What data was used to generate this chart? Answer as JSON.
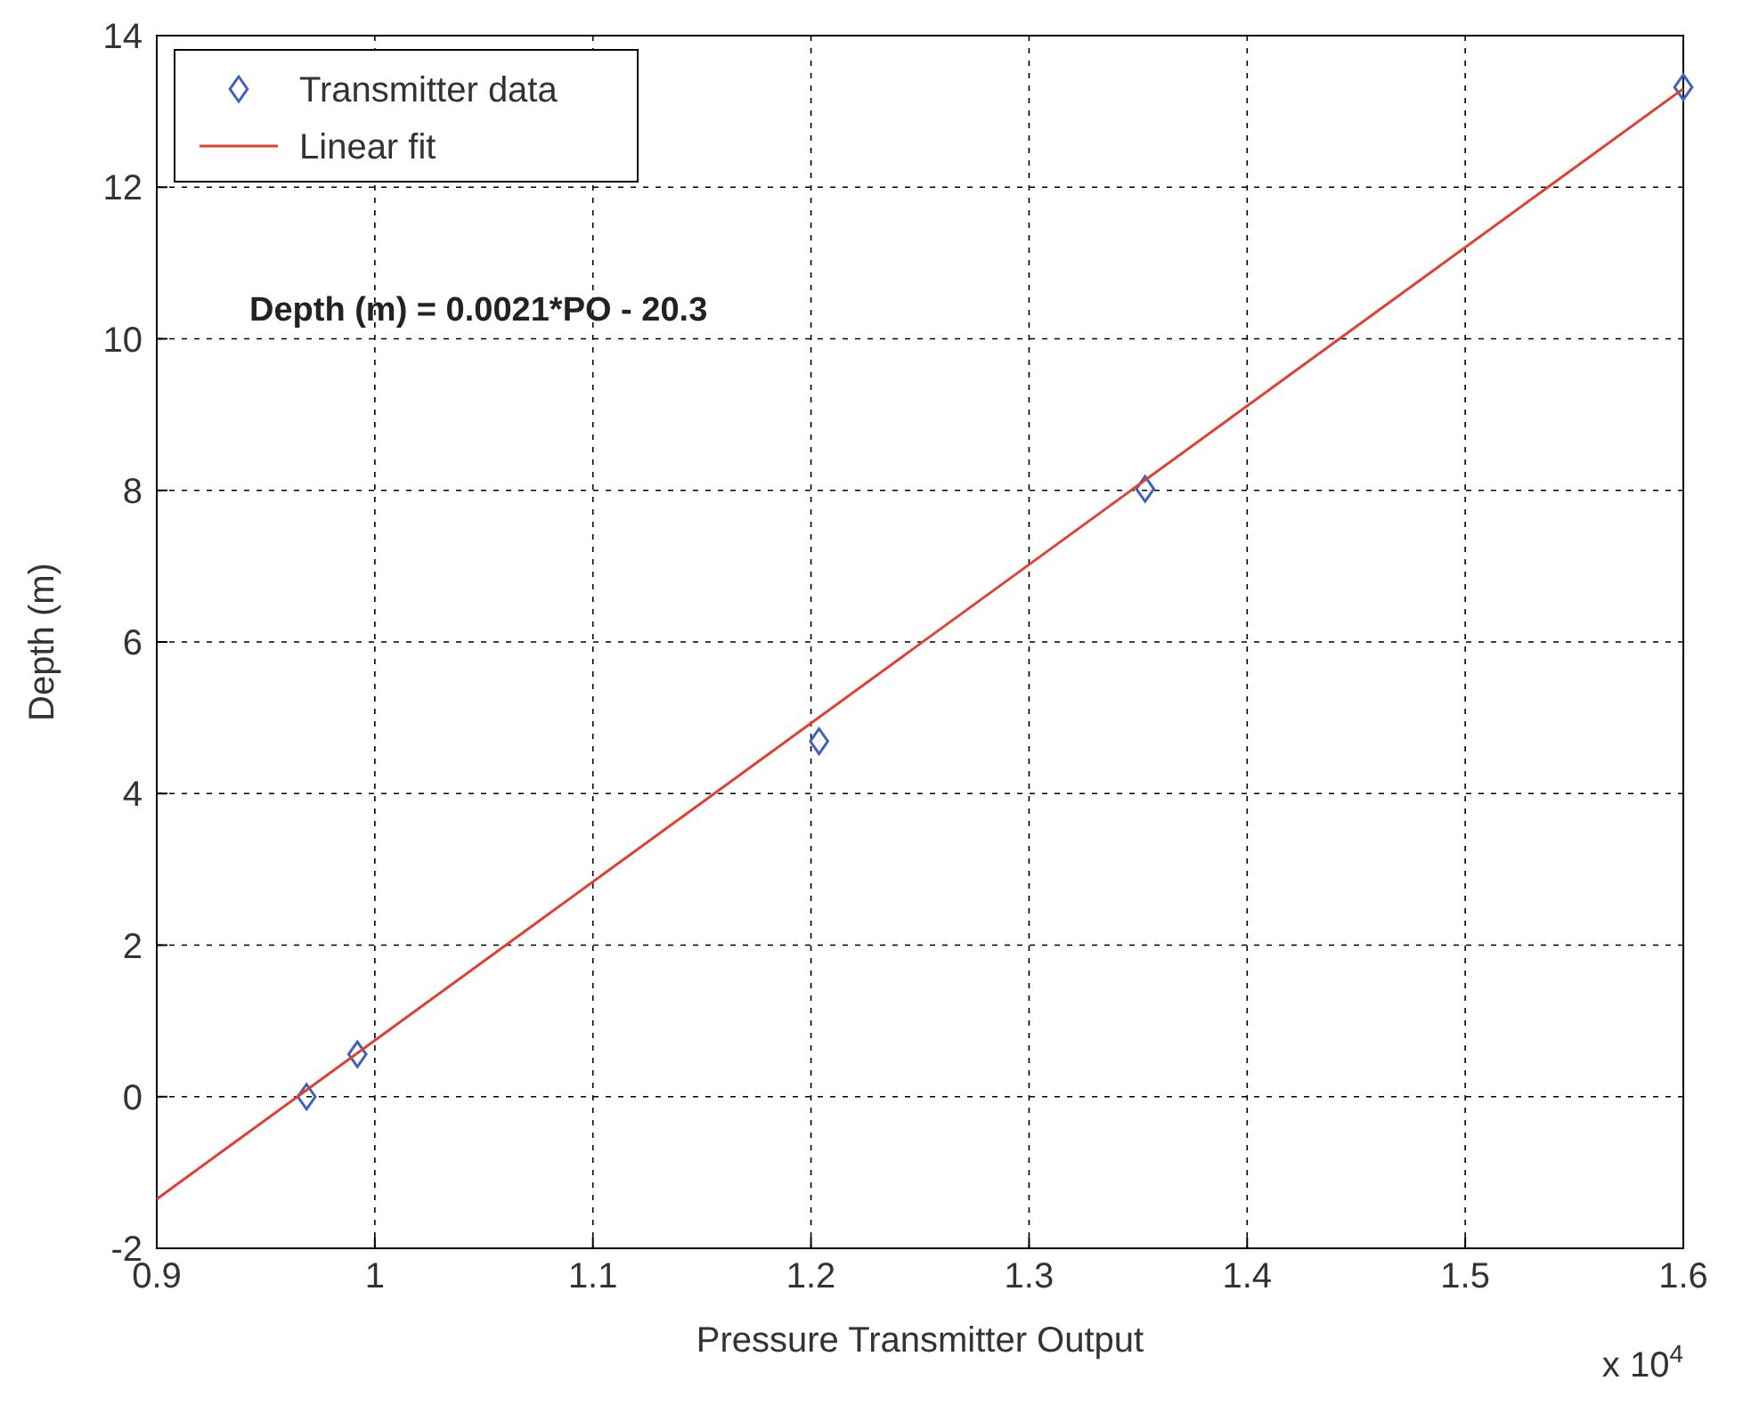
{
  "chart_data": {
    "type": "scatter",
    "xlabel": "Pressure Transmitter Output",
    "ylabel": "Depth (m)",
    "xlim": [
      0.9,
      1.6
    ],
    "xticks": [
      0.9,
      1,
      1.1,
      1.2,
      1.3,
      1.4,
      1.5,
      1.6
    ],
    "ylim": [
      -2,
      14
    ],
    "yticks": [
      -2,
      0,
      2,
      4,
      6,
      8,
      10,
      12,
      14
    ],
    "grid": true,
    "legend": "top left",
    "annotations": [
      "Depth (m) = 0.0021*PO - 20.3",
      "x 10$^{4}$"
    ],
    "series": [
      {
        "name": "Transmitter data",
        "type": "scatter",
        "marker": "diamond",
        "color": "#4060c0",
        "x": [
          0.9687,
          0.992,
          1.2037,
          1.3532,
          1.6
        ],
        "values": [
          0.0,
          0.56,
          4.69,
          8.02,
          13.32
        ]
      },
      {
        "name": "Linear fit",
        "type": "line",
        "marker": "none",
        "color": "#e04030",
        "x": [
          0.9,
          1.6
        ],
        "values": [
          -1.35,
          13.3
        ]
      }
    ]
  }
}
